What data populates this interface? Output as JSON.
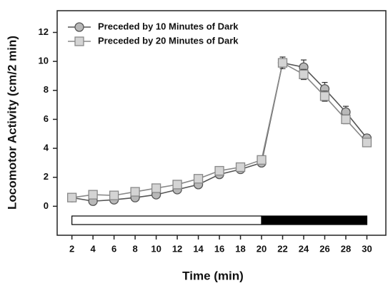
{
  "chart_data": {
    "type": "line",
    "x_label": "Time (min)",
    "y_label": "Locomotor Activity (cm/2 min)",
    "x": [
      2,
      4,
      6,
      8,
      10,
      12,
      14,
      16,
      18,
      20,
      22,
      24,
      26,
      28,
      30
    ],
    "series": [
      {
        "name": "Preceded by 10 Minutes of Dark",
        "color": "#555555",
        "fill": "#b8b8b8",
        "marker": "circle",
        "values": [
          0.6,
          0.35,
          0.45,
          0.6,
          0.8,
          1.15,
          1.5,
          2.2,
          2.55,
          3.0,
          9.9,
          9.6,
          8.1,
          6.5,
          4.7
        ],
        "errors": [
          0.1,
          0.1,
          0.1,
          0.1,
          0.1,
          0.15,
          0.15,
          0.15,
          0.15,
          0.2,
          0.4,
          0.5,
          0.45,
          0.4,
          0.25
        ]
      },
      {
        "name": "Preceded by 20 Minutes of Dark",
        "color": "#888888",
        "fill": "#d4d4d4",
        "marker": "square",
        "values": [
          0.6,
          0.8,
          0.75,
          1.0,
          1.25,
          1.5,
          1.9,
          2.45,
          2.7,
          3.2,
          9.9,
          9.1,
          7.6,
          6.0,
          4.4
        ],
        "errors": [
          0.1,
          0.1,
          0.1,
          0.1,
          0.1,
          0.1,
          0.15,
          0.15,
          0.15,
          0.2,
          0.3,
          0.35,
          0.35,
          0.3,
          0.25
        ]
      }
    ],
    "phases": [
      {
        "start": 2,
        "end": 20,
        "color": "#ffffff"
      },
      {
        "start": 20,
        "end": 30,
        "color": "#000000"
      }
    ],
    "xlim": [
      0.6,
      31.8
    ],
    "ylim": [
      -2,
      13.5
    ],
    "xticks": [
      2,
      4,
      6,
      8,
      10,
      12,
      14,
      16,
      18,
      20,
      22,
      24,
      26,
      28,
      30
    ],
    "yticks": [
      0,
      2,
      4,
      6,
      8,
      10,
      12
    ],
    "legend": "upper left",
    "grid": false
  }
}
